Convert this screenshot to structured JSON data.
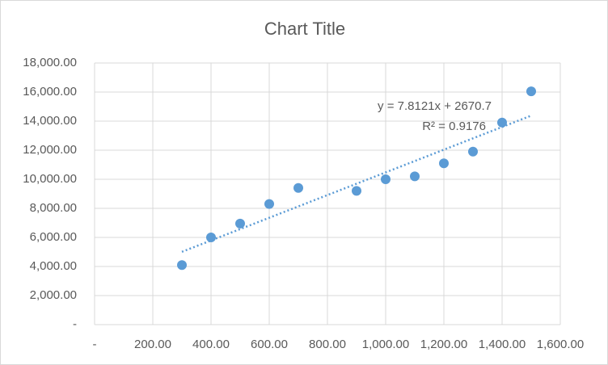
{
  "chart_data": {
    "type": "scatter",
    "title": "Chart Title",
    "x": [
      300,
      400,
      500,
      600,
      700,
      900,
      1000,
      1100,
      1200,
      1300,
      1400,
      1500
    ],
    "values": [
      4100,
      6000,
      6950,
      8300,
      9400,
      9200,
      10000,
      10200,
      11100,
      11900,
      13900,
      16050
    ],
    "color": "#5b9bd5",
    "xlim": [
      0,
      1600
    ],
    "ylim": [
      0,
      18000
    ],
    "xticks": [
      {
        "value": 0,
        "label": "-"
      },
      {
        "value": 200,
        "label": "200.00"
      },
      {
        "value": 400,
        "label": "400.00"
      },
      {
        "value": 600,
        "label": "600.00"
      },
      {
        "value": 800,
        "label": "800.00"
      },
      {
        "value": 1000,
        "label": "1,000.00"
      },
      {
        "value": 1200,
        "label": "1,200.00"
      },
      {
        "value": 1400,
        "label": "1,400.00"
      },
      {
        "value": 1600,
        "label": "1,600.00"
      }
    ],
    "yticks": [
      {
        "value": 0,
        "label": "-"
      },
      {
        "value": 2000,
        "label": "2,000.00"
      },
      {
        "value": 4000,
        "label": "4,000.00"
      },
      {
        "value": 6000,
        "label": "6,000.00"
      },
      {
        "value": 8000,
        "label": "8,000.00"
      },
      {
        "value": 10000,
        "label": "10,000.00"
      },
      {
        "value": 12000,
        "label": "12,000.00"
      },
      {
        "value": 14000,
        "label": "14,000.00"
      },
      {
        "value": 16000,
        "label": "16,000.00"
      },
      {
        "value": 18000,
        "label": "18,000.00"
      }
    ],
    "grid": true,
    "trendline": {
      "equation": "y = 7.8121x + 2670.7",
      "r_squared": "R² = 0.9176"
    }
  }
}
